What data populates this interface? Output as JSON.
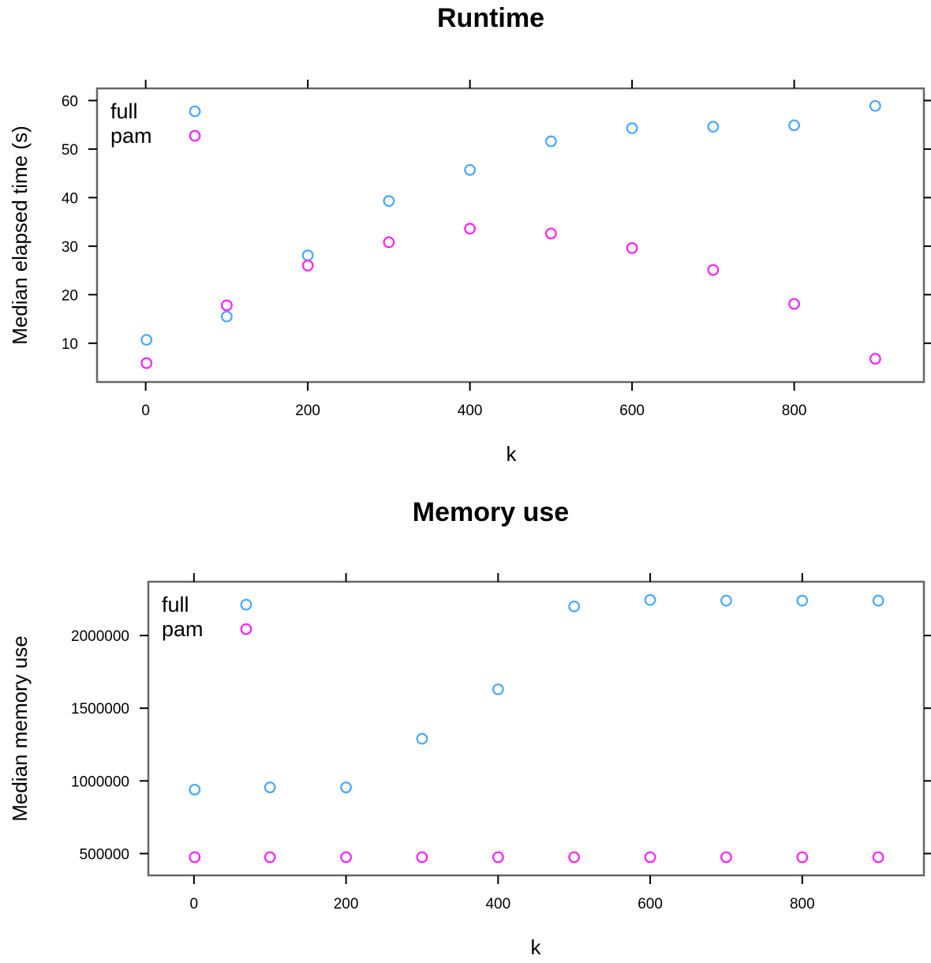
{
  "colors": {
    "full": "#4AA8FF",
    "pam": "#FF22FF",
    "frame": "#666666"
  },
  "chart_data": [
    {
      "type": "scatter",
      "title": "Runtime",
      "xlabel": "k",
      "ylabel": "Median elapsed time (s)",
      "xlim": [
        -60,
        960
      ],
      "ylim": [
        2,
        62.5
      ],
      "xticks": [
        0,
        200,
        400,
        600,
        800
      ],
      "xtick_labels": [
        "0",
        "200",
        "400",
        "600",
        "800"
      ],
      "yticks": [
        10,
        20,
        30,
        40,
        50,
        60
      ],
      "ytick_labels": [
        "10",
        "20",
        "30",
        "40",
        "50",
        "60"
      ],
      "grid": false,
      "legend_position": "top-left",
      "series": [
        {
          "name": "full",
          "color": "#4AA8FF",
          "x": [
            1,
            100,
            200,
            300,
            400,
            500,
            600,
            700,
            800,
            900
          ],
          "y": [
            10.7,
            15.5,
            28.1,
            39.3,
            45.7,
            51.6,
            54.3,
            54.6,
            54.9,
            58.9
          ]
        },
        {
          "name": "pam",
          "color": "#FF22FF",
          "x": [
            1,
            100,
            200,
            300,
            400,
            500,
            600,
            700,
            800,
            900
          ],
          "y": [
            5.9,
            17.8,
            26.0,
            30.8,
            33.6,
            32.6,
            29.6,
            25.1,
            18.1,
            6.8
          ]
        }
      ]
    },
    {
      "type": "scatter",
      "title": "Memory use",
      "xlabel": "k",
      "ylabel": "Median memory use",
      "xlim": [
        -60,
        960
      ],
      "ylim": [
        350000,
        2370000
      ],
      "xticks": [
        0,
        200,
        400,
        600,
        800
      ],
      "xtick_labels": [
        "0",
        "200",
        "400",
        "600",
        "800"
      ],
      "yticks": [
        500000,
        1000000,
        1500000,
        2000000
      ],
      "ytick_labels": [
        "500000",
        "1000000",
        "1500000",
        "2000000"
      ],
      "grid": false,
      "legend_position": "top-left",
      "series": [
        {
          "name": "full",
          "color": "#4AA8FF",
          "x": [
            1,
            100,
            200,
            300,
            400,
            500,
            600,
            700,
            800,
            900
          ],
          "y": [
            940000,
            955000,
            955000,
            1290000,
            1630000,
            2200000,
            2245000,
            2240000,
            2240000,
            2240000
          ]
        },
        {
          "name": "pam",
          "color": "#FF22FF",
          "x": [
            1,
            100,
            200,
            300,
            400,
            500,
            600,
            700,
            800,
            900
          ],
          "y": [
            475000,
            475000,
            475000,
            475000,
            475000,
            475000,
            475000,
            475000,
            475000,
            475000
          ]
        }
      ]
    }
  ]
}
